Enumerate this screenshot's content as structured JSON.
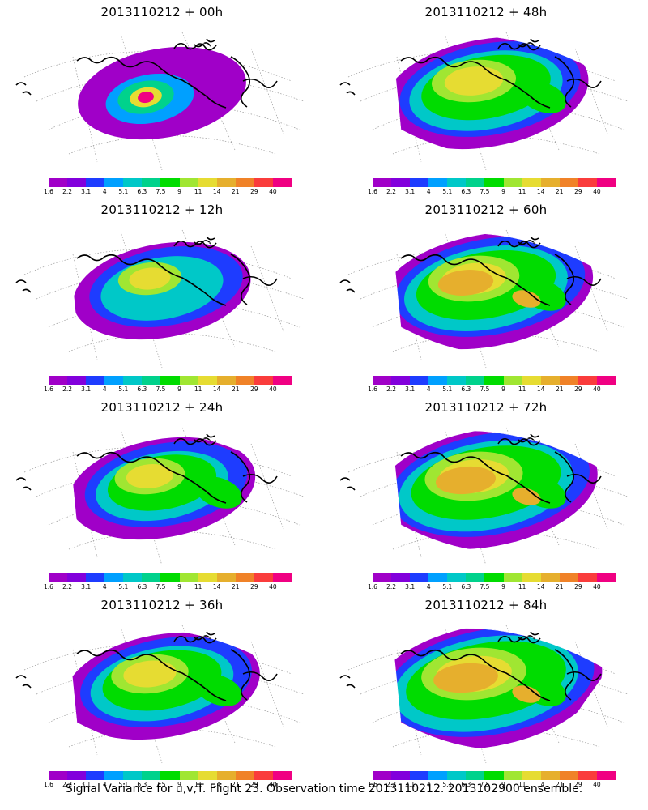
{
  "figure": {
    "footer": "Signal Variance for u,v,T. Flight 23. Observation time 2013110212. 2013102900 ensemble."
  },
  "colorbar": {
    "labels": [
      "1.6",
      "2.2",
      "3.1",
      "4",
      "5.1",
      "6.3",
      "7.5",
      "9",
      "11",
      "14",
      "21",
      "29",
      "40"
    ],
    "colors": [
      "#a000c8",
      "#8200dc",
      "#1e3cff",
      "#00a0ff",
      "#00c8c8",
      "#00d28c",
      "#00dc00",
      "#a0e632",
      "#e6dc32",
      "#e6af2d",
      "#f08228",
      "#fa3c3c",
      "#f00082"
    ]
  },
  "panels": [
    {
      "title": "2013110212 + 00h",
      "level": 0
    },
    {
      "title": "2013110212 + 48h",
      "level": 4
    },
    {
      "title": "2013110212 + 12h",
      "level": 1
    },
    {
      "title": "2013110212 + 60h",
      "level": 5
    },
    {
      "title": "2013110212 + 24h",
      "level": 2
    },
    {
      "title": "2013110212 + 72h",
      "level": 6
    },
    {
      "title": "2013110212 + 36h",
      "level": 3
    },
    {
      "title": "2013110212 + 84h",
      "level": 7
    }
  ]
}
